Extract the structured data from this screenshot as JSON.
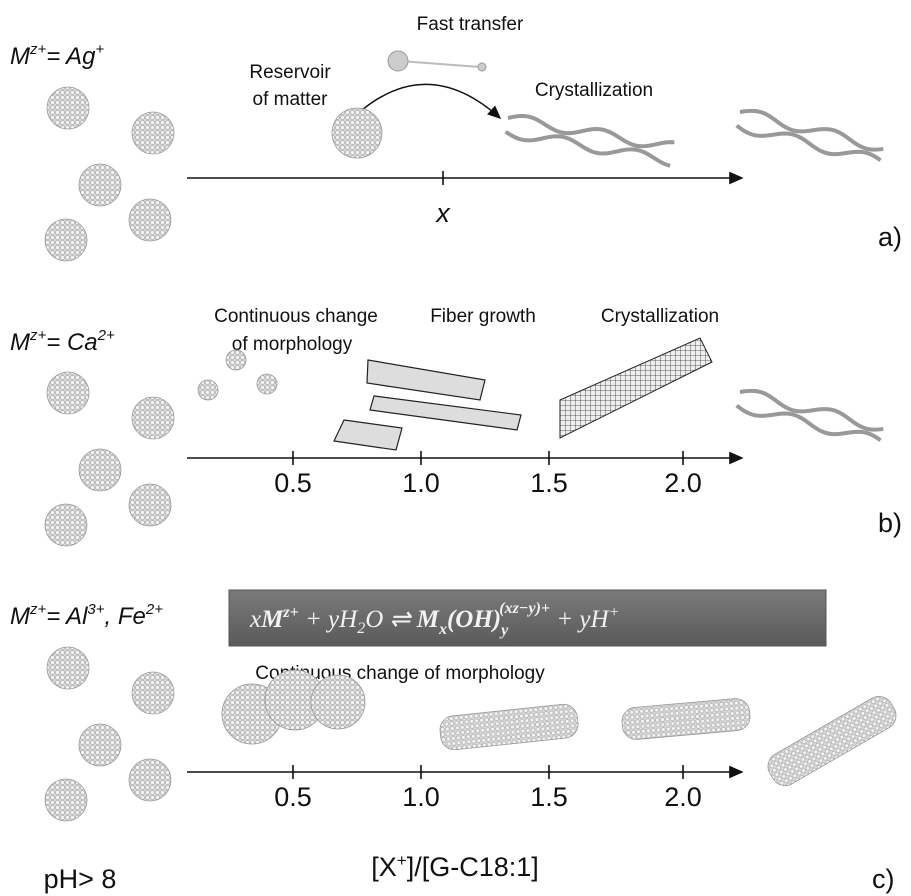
{
  "panel_a": {
    "ion": [
      "M",
      "z+",
      "= Ag",
      "+"
    ],
    "fast_transfer": "Fast transfer",
    "reservoir": [
      "Reservoir",
      "of matter"
    ],
    "crystallization": "Crystallization",
    "axis_mark": "x",
    "tag": "a)"
  },
  "panel_b": {
    "ion": [
      "M",
      "z+",
      "= Ca",
      "2+"
    ],
    "morphology": [
      "Continuous change",
      "of morphology"
    ],
    "fiber_growth": "Fiber growth",
    "crystallization": "Crystallization",
    "ticks": [
      "0.5",
      "1.0",
      "1.5",
      "2.0"
    ],
    "tag": "b)"
  },
  "panel_c": {
    "ion": [
      "M",
      "z+",
      "= Al",
      "3+",
      ", Fe",
      "2+"
    ],
    "equation": [
      "x",
      "M",
      "z+",
      " + yH",
      "2",
      "O ⇌ ",
      "M",
      "x",
      "(OH)",
      "y",
      "(xz−y)+",
      " + yH",
      "+"
    ],
    "morphology": "Continuous change of morphology",
    "ticks": [
      "0.5",
      "1.0",
      "1.5",
      "2.0"
    ],
    "ph": "pH> 8",
    "axis_title": [
      "[X",
      "+",
      "]/[G-C18:1]"
    ],
    "tag": "c)"
  }
}
